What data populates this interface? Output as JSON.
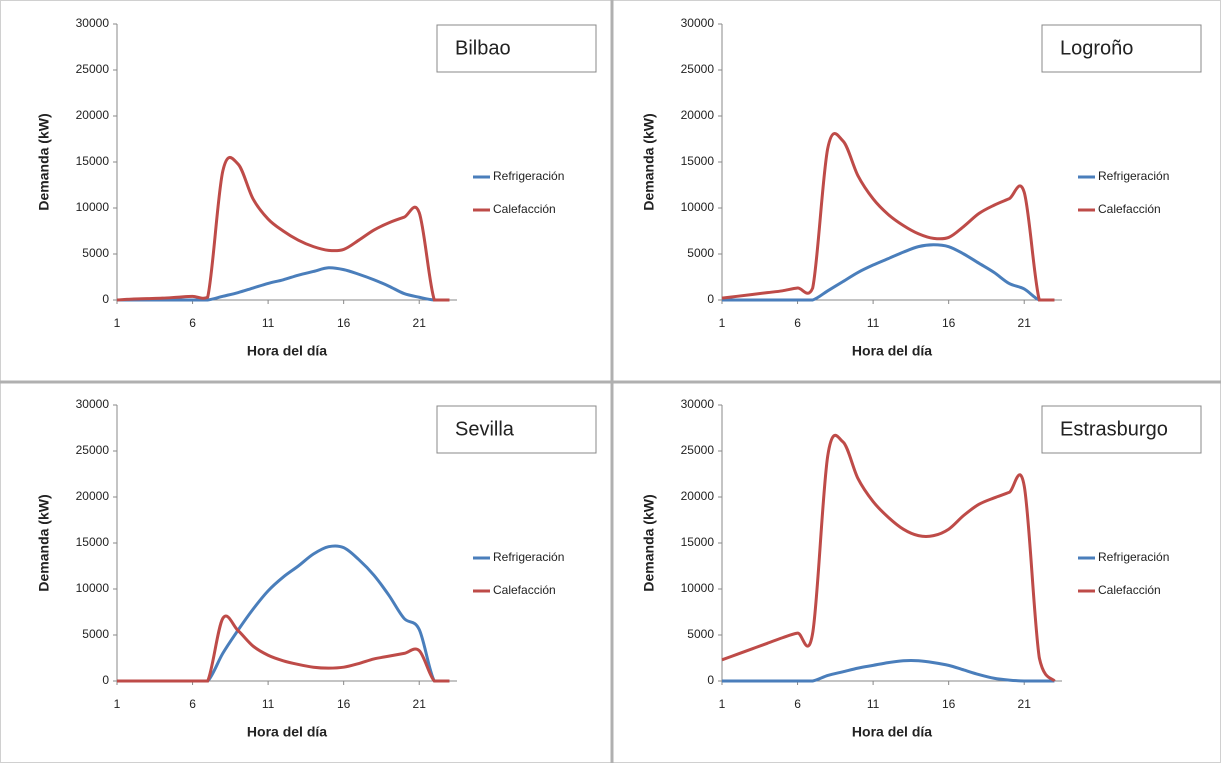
{
  "chart_data": [
    {
      "type": "line",
      "title": "Bilbao",
      "x_label": "Hora del día",
      "y_label": "Demanda (kW)",
      "x": [
        1,
        2,
        3,
        4,
        5,
        6,
        7,
        8,
        9,
        10,
        11,
        12,
        13,
        14,
        15,
        16,
        17,
        18,
        19,
        20,
        21,
        22,
        23
      ],
      "xlim": [
        1,
        23.5
      ],
      "xticks": [
        1,
        6,
        11,
        16,
        21
      ],
      "ylim": [
        0,
        30000
      ],
      "yticks": [
        0,
        5000,
        10000,
        15000,
        20000,
        25000,
        30000
      ],
      "legend": "right",
      "series": [
        {
          "name": "Refrigeración",
          "color": "#4a7ebb",
          "values": [
            0,
            0,
            0,
            0,
            0,
            0,
            0,
            400,
            800,
            1300,
            1800,
            2200,
            2700,
            3100,
            3500,
            3300,
            2800,
            2200,
            1500,
            700,
            300,
            0,
            0
          ]
        },
        {
          "name": "Calefacción",
          "color": "#be4b48",
          "values": [
            0,
            100,
            150,
            200,
            300,
            400,
            300,
            14000,
            14800,
            11000,
            8800,
            7500,
            6500,
            5800,
            5400,
            5500,
            6500,
            7600,
            8400,
            9000,
            9500,
            0,
            0
          ]
        }
      ]
    },
    {
      "type": "line",
      "title": "Logroño",
      "x_label": "Hora del día",
      "y_label": "Demanda (kW)",
      "x": [
        1,
        2,
        3,
        4,
        5,
        6,
        7,
        8,
        9,
        10,
        11,
        12,
        13,
        14,
        15,
        16,
        17,
        18,
        19,
        20,
        21,
        22,
        23
      ],
      "xlim": [
        1,
        23.5
      ],
      "xticks": [
        1,
        6,
        11,
        16,
        21
      ],
      "ylim": [
        0,
        30000
      ],
      "yticks": [
        0,
        5000,
        10000,
        15000,
        20000,
        25000,
        30000
      ],
      "legend": "right",
      "series": [
        {
          "name": "Refrigeración",
          "color": "#4a7ebb",
          "values": [
            0,
            0,
            0,
            0,
            0,
            0,
            0,
            1000,
            2000,
            3000,
            3800,
            4500,
            5200,
            5800,
            6000,
            5800,
            5000,
            4000,
            3000,
            1800,
            1200,
            0,
            0
          ]
        },
        {
          "name": "Calefacción",
          "color": "#be4b48",
          "values": [
            200,
            400,
            600,
            800,
            1000,
            1300,
            1300,
            16500,
            17300,
            13500,
            11000,
            9300,
            8100,
            7200,
            6700,
            6800,
            8000,
            9400,
            10300,
            11000,
            11700,
            0,
            0
          ]
        }
      ]
    },
    {
      "type": "line",
      "title": "Sevilla",
      "x_label": "Hora del día",
      "y_label": "Demanda (kW)",
      "x": [
        1,
        2,
        3,
        4,
        5,
        6,
        7,
        8,
        9,
        10,
        11,
        12,
        13,
        14,
        15,
        16,
        17,
        18,
        19,
        20,
        21,
        22,
        23
      ],
      "xlim": [
        1,
        23.5
      ],
      "xticks": [
        1,
        6,
        11,
        16,
        21
      ],
      "ylim": [
        0,
        30000
      ],
      "yticks": [
        0,
        5000,
        10000,
        15000,
        20000,
        25000,
        30000
      ],
      "legend": "right",
      "series": [
        {
          "name": "Refrigeración",
          "color": "#4a7ebb",
          "values": [
            0,
            0,
            0,
            0,
            0,
            0,
            0,
            3000,
            5500,
            7800,
            9800,
            11300,
            12500,
            13800,
            14600,
            14500,
            13200,
            11500,
            9300,
            6800,
            5600,
            0,
            0
          ]
        },
        {
          "name": "Calefacción",
          "color": "#be4b48",
          "values": [
            0,
            0,
            0,
            0,
            0,
            0,
            0,
            6800,
            5500,
            3800,
            2800,
            2200,
            1800,
            1500,
            1400,
            1500,
            1900,
            2400,
            2700,
            3000,
            3300,
            0,
            0
          ]
        }
      ]
    },
    {
      "type": "line",
      "title": "Estrasburgo",
      "x_label": "Hora del día",
      "y_label": "Demanda (kW)",
      "x": [
        1,
        2,
        3,
        4,
        5,
        6,
        7,
        8,
        9,
        10,
        11,
        12,
        13,
        14,
        15,
        16,
        17,
        18,
        19,
        20,
        21,
        22,
        23
      ],
      "xlim": [
        1,
        23.5
      ],
      "xticks": [
        1,
        6,
        11,
        16,
        21
      ],
      "ylim": [
        0,
        30000
      ],
      "yticks": [
        0,
        5000,
        10000,
        15000,
        20000,
        25000,
        30000
      ],
      "legend": "right",
      "series": [
        {
          "name": "Refrigeración",
          "color": "#4a7ebb",
          "values": [
            0,
            0,
            0,
            0,
            0,
            0,
            0,
            600,
            1000,
            1400,
            1700,
            2000,
            2200,
            2200,
            2000,
            1700,
            1200,
            700,
            300,
            100,
            0,
            0,
            0
          ]
        },
        {
          "name": "Calefacción",
          "color": "#be4b48",
          "values": [
            2300,
            2900,
            3500,
            4100,
            4700,
            5200,
            5200,
            24500,
            26000,
            22000,
            19500,
            17800,
            16500,
            15800,
            15800,
            16500,
            18000,
            19200,
            19900,
            20500,
            21200,
            2500,
            0
          ]
        }
      ]
    }
  ]
}
